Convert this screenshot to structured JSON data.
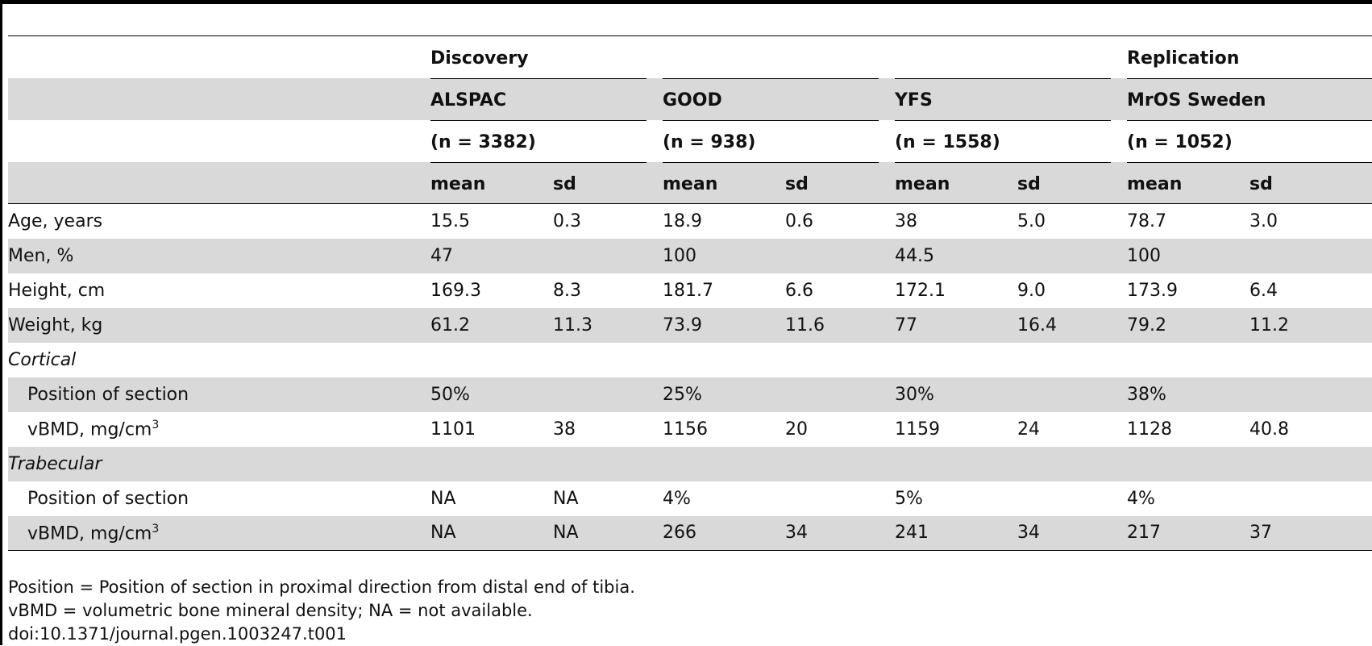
{
  "header": {
    "section_row": {
      "discovery": "Discovery",
      "replication": "Replication"
    },
    "cohorts": [
      "ALSPAC",
      "GOOD",
      "YFS",
      "MrOS Sweden"
    ],
    "sample_sizes": [
      "(n = 3382)",
      "(n = 938)",
      "(n = 1558)",
      "(n = 1052)"
    ],
    "stat_labels": {
      "mean": "mean",
      "sd": "sd"
    }
  },
  "rows": [
    {
      "label": "Age, years",
      "values": [
        "15.5",
        "0.3",
        "18.9",
        "0.6",
        "38",
        "5.0",
        "78.7",
        "3.0"
      ]
    },
    {
      "label": "Men, %",
      "values": [
        "47",
        "",
        "100",
        "",
        "44.5",
        "",
        "100",
        ""
      ]
    },
    {
      "label": "Height, cm",
      "values": [
        "169.3",
        "8.3",
        "181.7",
        "6.6",
        "172.1",
        "9.0",
        "173.9",
        "6.4"
      ]
    },
    {
      "label": "Weight, kg",
      "values": [
        "61.2",
        "11.3",
        "73.9",
        "11.6",
        "77",
        "16.4",
        "79.2",
        "11.2"
      ]
    },
    {
      "label": "Cortical",
      "values": [
        "",
        "",
        "",
        "",
        "",
        "",
        "",
        ""
      ]
    },
    {
      "label": "Position of section",
      "values": [
        "50%",
        "",
        "25%",
        "",
        "30%",
        "",
        "38%",
        ""
      ]
    },
    {
      "label": "vBMD, mg/cm",
      "sup": "3",
      "values": [
        "1101",
        "38",
        "1156",
        "20",
        "1159",
        "24",
        "1128",
        "40.8"
      ]
    },
    {
      "label": "Trabecular",
      "values": [
        "",
        "",
        "",
        "",
        "",
        "",
        "",
        ""
      ]
    },
    {
      "label": "Position of section",
      "values": [
        "NA",
        "NA",
        "4%",
        "",
        "5%",
        "",
        "4%",
        ""
      ]
    },
    {
      "label": "vBMD, mg/cm",
      "sup": "3",
      "values": [
        "NA",
        "NA",
        "266",
        "34",
        "241",
        "34",
        "217",
        "37"
      ]
    }
  ],
  "footnotes": [
    "Position = Position of section in proximal direction from distal end of tibia.",
    "vBMD = volumetric bone mineral density; NA = not available.",
    "doi:10.1371/journal.pgen.1003247.t001"
  ]
}
